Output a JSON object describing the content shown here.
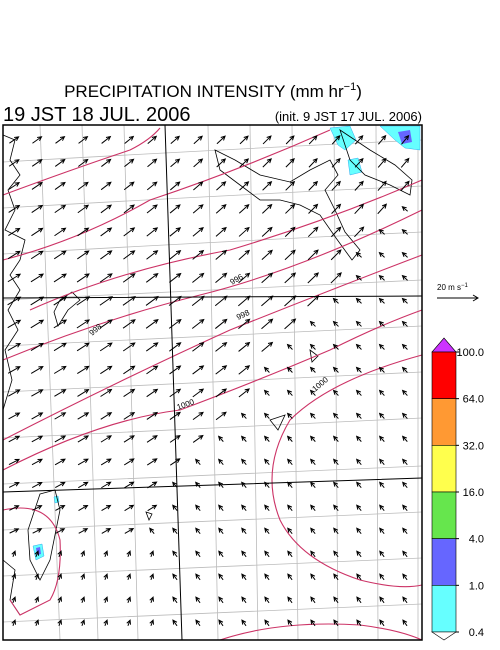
{
  "title": {
    "main": "PRECIPITATION INTENSITY (mm hr",
    "sup": "−1",
    "end": ")"
  },
  "valid_time": "19 JST 18 JUL. 2006",
  "init_time": "(init. 9 JST 17 JUL. 2006)",
  "vector_key": {
    "label": "20 m s",
    "sup": "−1"
  },
  "contour_labels": [
    "996",
    "998",
    "998",
    "1000",
    "1000"
  ],
  "colorbar": {
    "ticks": [
      {
        "value": 100,
        "label": "100.0"
      },
      {
        "value": 64,
        "label": "64.0"
      },
      {
        "value": 32,
        "label": "32.0"
      },
      {
        "value": 16,
        "label": "16.0"
      },
      {
        "value": 4,
        "label": "4.0"
      },
      {
        "value": 1,
        "label": "1.0"
      },
      {
        "value": 0.4,
        "label": "0.4"
      }
    ],
    "colors": [
      "#ff0000",
      "#ff9933",
      "#ffff4d",
      "#66e64d",
      "#6666ff",
      "#66ffff"
    ],
    "over_color": "#cc33ff",
    "under_color": "#ffffff"
  }
}
